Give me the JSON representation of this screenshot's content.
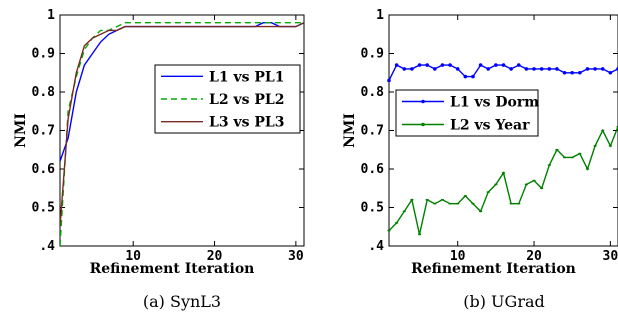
{
  "chart_data": [
    {
      "type": "line",
      "caption": "(a) SynL3",
      "xlabel": "Refinement Iteration",
      "ylabel": "NMI",
      "xlim": [
        1,
        31
      ],
      "ylim": [
        0.4,
        1.0
      ],
      "xticks": [
        10,
        20,
        30
      ],
      "yticks": [
        0.4,
        0.5,
        0.6,
        0.7,
        0.8,
        0.9,
        1.0
      ],
      "ytick_labels": [
        ".4",
        "0.5",
        "0.6",
        "0.7",
        "0.8",
        "0.9",
        "1"
      ],
      "legend_position": "center-right",
      "x": [
        1,
        2,
        3,
        4,
        5,
        6,
        7,
        8,
        9,
        10,
        11,
        12,
        13,
        14,
        15,
        16,
        17,
        18,
        19,
        20,
        21,
        22,
        23,
        24,
        25,
        26,
        27,
        28,
        29,
        30,
        31
      ],
      "series": [
        {
          "name": "L1 vs PL1",
          "color": "#0000ff",
          "dash": "solid",
          "values": [
            0.62,
            0.68,
            0.8,
            0.87,
            0.9,
            0.93,
            0.95,
            0.96,
            0.97,
            0.97,
            0.97,
            0.97,
            0.97,
            0.97,
            0.97,
            0.97,
            0.97,
            0.97,
            0.97,
            0.97,
            0.97,
            0.97,
            0.97,
            0.97,
            0.97,
            0.98,
            0.98,
            0.97,
            0.97,
            0.97,
            0.98
          ]
        },
        {
          "name": "L2 vs PL2",
          "color": "#00aa00",
          "dash": "dashed",
          "values": [
            0.4,
            0.75,
            0.84,
            0.91,
            0.94,
            0.96,
            0.96,
            0.97,
            0.98,
            0.98,
            0.98,
            0.98,
            0.98,
            0.98,
            0.98,
            0.98,
            0.98,
            0.98,
            0.98,
            0.98,
            0.98,
            0.98,
            0.98,
            0.98,
            0.98,
            0.98,
            0.98,
            0.98,
            0.98,
            0.98,
            0.98
          ]
        },
        {
          "name": "L3 vs PL3",
          "color": "#7a2a22",
          "dash": "solid",
          "values": [
            0.45,
            0.73,
            0.85,
            0.92,
            0.94,
            0.95,
            0.96,
            0.96,
            0.97,
            0.97,
            0.97,
            0.97,
            0.97,
            0.97,
            0.97,
            0.97,
            0.97,
            0.97,
            0.97,
            0.97,
            0.97,
            0.97,
            0.97,
            0.97,
            0.97,
            0.97,
            0.97,
            0.97,
            0.97,
            0.97,
            0.98
          ]
        }
      ]
    },
    {
      "type": "line",
      "caption": "(b) UGrad",
      "xlabel": "Refinement Iteration",
      "ylabel": "NMI",
      "xlim": [
        1,
        31
      ],
      "ylim": [
        0.4,
        1.0
      ],
      "xticks": [
        10,
        20,
        30
      ],
      "yticks": [
        0.4,
        0.5,
        0.6,
        0.7,
        0.8,
        0.9,
        1.0
      ],
      "ytick_labels": [
        ".4",
        "0.5",
        "0.6",
        "0.7",
        "0.8",
        "0.9",
        "1"
      ],
      "legend_position": "top-left",
      "x": [
        1,
        2,
        3,
        4,
        5,
        6,
        7,
        8,
        9,
        10,
        11,
        12,
        13,
        14,
        15,
        16,
        17,
        18,
        19,
        20,
        21,
        22,
        23,
        24,
        25,
        26,
        27,
        28,
        29,
        30,
        31
      ],
      "series": [
        {
          "name": "L1 vs Dorm",
          "color": "#0000ff",
          "dash": "solid",
          "values": [
            0.83,
            0.87,
            0.86,
            0.86,
            0.87,
            0.87,
            0.86,
            0.87,
            0.87,
            0.86,
            0.84,
            0.84,
            0.87,
            0.86,
            0.87,
            0.87,
            0.86,
            0.87,
            0.86,
            0.86,
            0.86,
            0.86,
            0.86,
            0.85,
            0.85,
            0.85,
            0.86,
            0.86,
            0.86,
            0.85,
            0.86
          ]
        },
        {
          "name": "L2 vs Year",
          "color": "#008000",
          "dash": "solid",
          "values": [
            0.44,
            0.46,
            0.49,
            0.52,
            0.43,
            0.52,
            0.51,
            0.52,
            0.51,
            0.51,
            0.53,
            0.51,
            0.49,
            0.54,
            0.56,
            0.59,
            0.51,
            0.51,
            0.56,
            0.57,
            0.55,
            0.61,
            0.65,
            0.63,
            0.63,
            0.64,
            0.6,
            0.66,
            0.7,
            0.66,
            0.71
          ]
        }
      ]
    }
  ]
}
